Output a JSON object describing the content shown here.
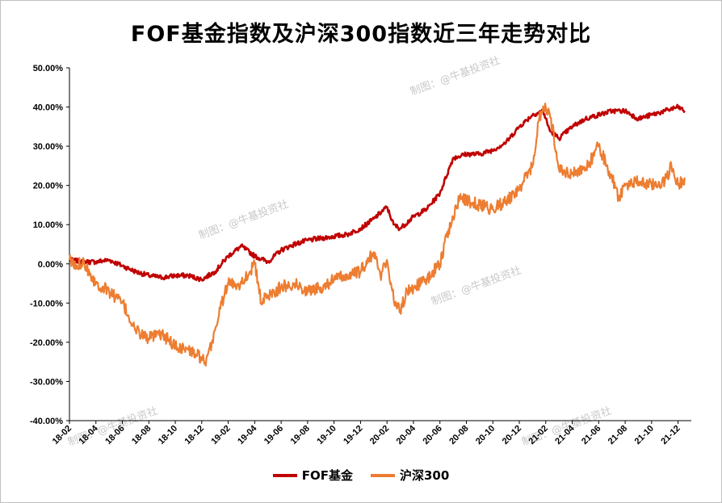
{
  "chart_data": {
    "type": "line",
    "title": "FOF基金指数及沪深300指数近三年走势对比",
    "xlabel": "",
    "ylabel": "",
    "ylim": [
      -40,
      50
    ],
    "y_ticks": [
      -40,
      -30,
      -20,
      -10,
      0,
      10,
      20,
      30,
      40,
      50
    ],
    "y_tick_labels": [
      "-40.00%",
      "-30.00%",
      "-20.00%",
      "-10.00%",
      "0.00%",
      "10.00%",
      "20.00%",
      "30.00%",
      "40.00%",
      "50.00%"
    ],
    "x_tick_labels": [
      "18-02",
      "18-04",
      "18-06",
      "18-08",
      "18-10",
      "18-12",
      "19-02",
      "19-04",
      "19-06",
      "19-08",
      "19-10",
      "19-12",
      "20-02",
      "20-04",
      "20-06",
      "20-08",
      "20-10",
      "20-12",
      "21-02",
      "21-04",
      "21-06",
      "21-08",
      "21-10",
      "21-12"
    ],
    "x_months": [
      0,
      2,
      4,
      6,
      8,
      10,
      12,
      14,
      16,
      18,
      20,
      22,
      24,
      26,
      28,
      30,
      32,
      34,
      36,
      38,
      40,
      42,
      44,
      46
    ],
    "legend_position": "bottom",
    "series": [
      {
        "name": "FOF基金",
        "color": "#c00000",
        "x": [
          0,
          1,
          2,
          3,
          4,
          5,
          6,
          7,
          8,
          9,
          10,
          11,
          12,
          13,
          14,
          15,
          16,
          17,
          18,
          19,
          20,
          21,
          22,
          23,
          24,
          24.5,
          25,
          26,
          27,
          28,
          29,
          30,
          31,
          32,
          33,
          34,
          35,
          35.8,
          36.3,
          37,
          38,
          39,
          40,
          41,
          42,
          43,
          44,
          45,
          46,
          46.5
        ],
        "values": [
          1,
          0.5,
          0.5,
          1,
          -0.5,
          -2,
          -3,
          -3.5,
          -3,
          -3,
          -4,
          -2,
          2,
          4.5,
          2,
          0.5,
          3.5,
          5,
          6,
          6.5,
          7,
          7.5,
          9,
          11.5,
          14.5,
          10,
          9,
          12,
          14,
          18,
          27,
          28,
          28,
          29,
          31,
          35,
          38,
          39,
          34,
          32,
          35,
          37,
          38,
          39,
          39,
          37,
          38,
          39,
          40,
          39
        ]
      },
      {
        "name": "沪深300",
        "color": "#ed7d31",
        "x": [
          0,
          0.5,
          1,
          1.5,
          2,
          3,
          4,
          5,
          6,
          7,
          8,
          9,
          10,
          10.3,
          11,
          11.5,
          12,
          13,
          14,
          14.5,
          15,
          16,
          17,
          18,
          19,
          20,
          21,
          22,
          23,
          23.5,
          24,
          24.5,
          25,
          25.5,
          26,
          27,
          28,
          28.5,
          29,
          29.5,
          30,
          31,
          32,
          33,
          34,
          35,
          35.5,
          36,
          36.5,
          37,
          38,
          39,
          40,
          41,
          41.5,
          42,
          43,
          44,
          45,
          45.5,
          46,
          46.5
        ],
        "values": [
          1,
          -1,
          1,
          -2,
          -5,
          -7,
          -10,
          -17,
          -19,
          -18,
          -21,
          -22,
          -24,
          -26,
          -17,
          -10,
          -5,
          -5,
          0,
          -10,
          -8,
          -6,
          -5,
          -7,
          -6,
          -4,
          -3,
          -2,
          3,
          -3,
          1,
          -9,
          -12,
          -7,
          -6,
          -4,
          0,
          7,
          12,
          17,
          16,
          15,
          14,
          16,
          19,
          25,
          37,
          40,
          35,
          24,
          23,
          24,
          30,
          22,
          17,
          20,
          21,
          20,
          21,
          25,
          20,
          22
        ]
      }
    ]
  },
  "watermark": "制图：@牛基投资社"
}
